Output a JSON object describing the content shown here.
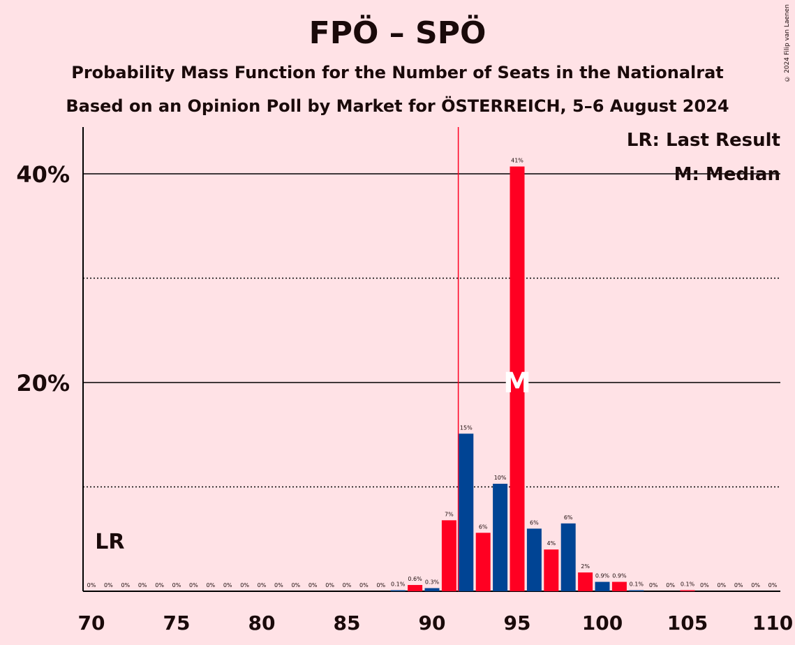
{
  "title": "FPÖ – SPÖ",
  "subtitle": "Probability Mass Function for the Number of Seats in the Nationalrat",
  "subtitle2": "Based on an Opinion Poll by Market for ÖSTERREICH, 5–6 August 2024",
  "copyright": "© 2024 Filip van Laenen",
  "legend": {
    "lr": "LR: Last Result",
    "median": "M: Median"
  },
  "lr_label": "LR",
  "median_label": "M",
  "colors": {
    "background": "#ffe2e6",
    "red": "#ff0022",
    "blue": "#004494",
    "text": "#1a0a0a"
  },
  "chart_data": {
    "type": "bar",
    "x": [
      70,
      71,
      72,
      73,
      74,
      75,
      76,
      77,
      78,
      79,
      80,
      81,
      82,
      83,
      84,
      85,
      86,
      87,
      88,
      89,
      90,
      91,
      92,
      93,
      94,
      95,
      96,
      97,
      98,
      99,
      100,
      101,
      102,
      103,
      104,
      105,
      106,
      107,
      108,
      109,
      110
    ],
    "values": [
      0,
      0,
      0,
      0,
      0,
      0,
      0,
      0,
      0,
      0,
      0,
      0,
      0,
      0,
      0,
      0,
      0,
      0,
      0.1,
      0.6,
      0.3,
      6.8,
      15.1,
      5.6,
      10.3,
      40.7,
      6.0,
      4.0,
      6.5,
      1.8,
      0.9,
      0.9,
      0.1,
      0,
      0,
      0.1,
      0,
      0,
      0,
      0,
      0
    ],
    "labels": [
      "0%",
      "0%",
      "0%",
      "0%",
      "0%",
      "0%",
      "0%",
      "0%",
      "0%",
      "0%",
      "0%",
      "0%",
      "0%",
      "0%",
      "0%",
      "0%",
      "0%",
      "0%",
      "0.1%",
      "0.6%",
      "0.3%",
      "7%",
      "15%",
      "6%",
      "10%",
      "41%",
      "6%",
      "4%",
      "6%",
      "2%",
      "0.9%",
      "0.9%",
      "0.1%",
      "0%",
      "0%",
      "0.1%",
      "0%",
      "0%",
      "0%",
      "0%",
      "0%"
    ],
    "colors_by_parity": {
      "odd": "red",
      "even": "blue"
    },
    "x_ticks": [
      "70",
      "75",
      "80",
      "85",
      "90",
      "95",
      "100",
      "105",
      "110"
    ],
    "y_ticks": [
      "20%",
      "40%"
    ],
    "ylim": [
      0,
      44
    ],
    "last_result": 71,
    "majority_line": 91.5,
    "median": 95,
    "grid": true
  }
}
